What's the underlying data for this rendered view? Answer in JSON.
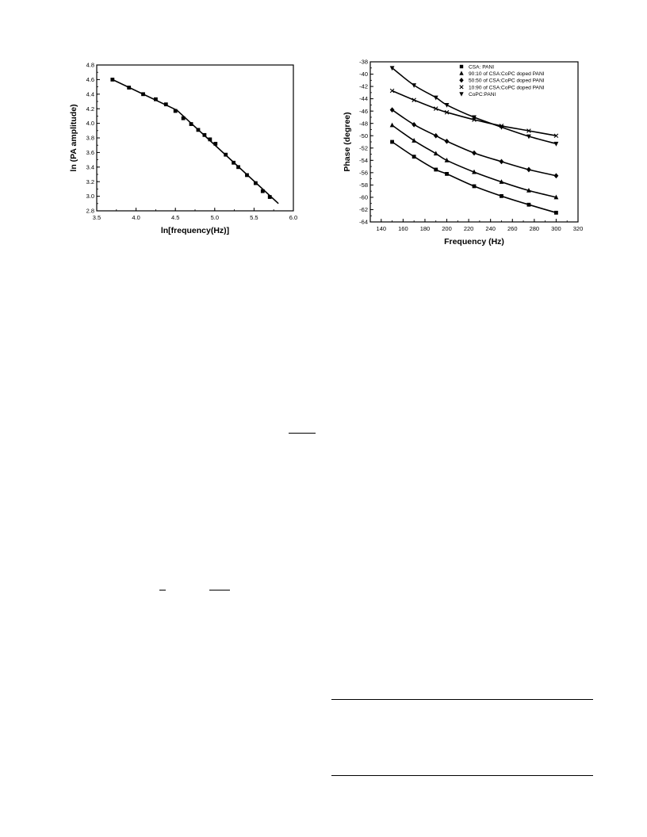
{
  "chart_data": [
    {
      "type": "scatter",
      "xlabel": "ln[frequency(Hz)]",
      "ylabel": "ln (PA amplitude)",
      "xlim": [
        3.5,
        6.0
      ],
      "ylim": [
        2.8,
        4.8
      ],
      "xticks": [
        "3.5",
        "4.0",
        "4.5",
        "5.0",
        "5.5",
        "6.0"
      ],
      "yticks": [
        "2.8",
        "3.0",
        "3.2",
        "3.4",
        "3.6",
        "3.8",
        "4.0",
        "4.2",
        "4.4",
        "4.6",
        "4.8"
      ],
      "grid": false,
      "series": [
        {
          "marker": "square",
          "x": [
            3.7,
            3.91,
            4.09,
            4.25,
            4.38,
            4.5,
            4.6,
            4.7,
            4.79,
            4.87,
            4.94,
            5.01,
            5.14,
            5.24,
            5.3,
            5.41,
            5.52,
            5.61,
            5.7
          ],
          "y": [
            4.6,
            4.49,
            4.4,
            4.33,
            4.26,
            4.17,
            4.07,
            3.99,
            3.91,
            3.84,
            3.78,
            3.72,
            3.57,
            3.46,
            3.4,
            3.29,
            3.18,
            3.07,
            2.99
          ]
        }
      ],
      "fit_lines": [
        {
          "x": [
            3.7,
            4.52
          ],
          "y": [
            4.6,
            4.18
          ]
        },
        {
          "x": [
            4.52,
            5.81
          ],
          "y": [
            4.18,
            2.9
          ]
        }
      ]
    },
    {
      "type": "line",
      "xlabel": "Frequency (Hz)",
      "ylabel": "Phase (degree)",
      "xlim": [
        130,
        320
      ],
      "ylim": [
        -64,
        -38
      ],
      "xticks": [
        "140",
        "160",
        "180",
        "200",
        "220",
        "240",
        "260",
        "280",
        "300",
        "320"
      ],
      "yticks": [
        "-38",
        "-40",
        "-42",
        "-44",
        "-46",
        "-48",
        "-50",
        "-52",
        "-54",
        "-56",
        "-58",
        "-60",
        "-62",
        "-64"
      ],
      "grid": false,
      "legend_position": "top",
      "x": [
        150,
        170,
        190,
        200,
        225,
        250,
        275,
        300
      ],
      "series": [
        {
          "name": "CSA: PANI",
          "marker": "square",
          "values": [
            -51.0,
            -53.4,
            -55.5,
            -56.2,
            -58.2,
            -59.8,
            -61.2,
            -62.5
          ]
        },
        {
          "name": "90:10 of CSA:CoPC doped PANI",
          "marker": "triangle-up",
          "values": [
            -48.3,
            -50.8,
            -52.9,
            -54.0,
            -55.9,
            -57.5,
            -58.9,
            -60.0
          ]
        },
        {
          "name": "50:50 of CSA:CoPC doped PANI",
          "marker": "diamond",
          "values": [
            -45.8,
            -48.2,
            -50.0,
            -50.9,
            -52.8,
            -54.2,
            -55.5,
            -56.5
          ]
        },
        {
          "name": "10:90 of CSA:CoPC doped PANI",
          "marker": "cross",
          "values": [
            -42.7,
            -44.2,
            -45.6,
            -46.2,
            -47.4,
            -48.4,
            -49.2,
            -50.0
          ]
        },
        {
          "name": "CoPC:PANI",
          "marker": "triangle-down",
          "values": [
            -39.0,
            -41.8,
            -43.8,
            -45.0,
            -47.0,
            -48.6,
            -50.1,
            -51.3
          ]
        }
      ]
    }
  ]
}
